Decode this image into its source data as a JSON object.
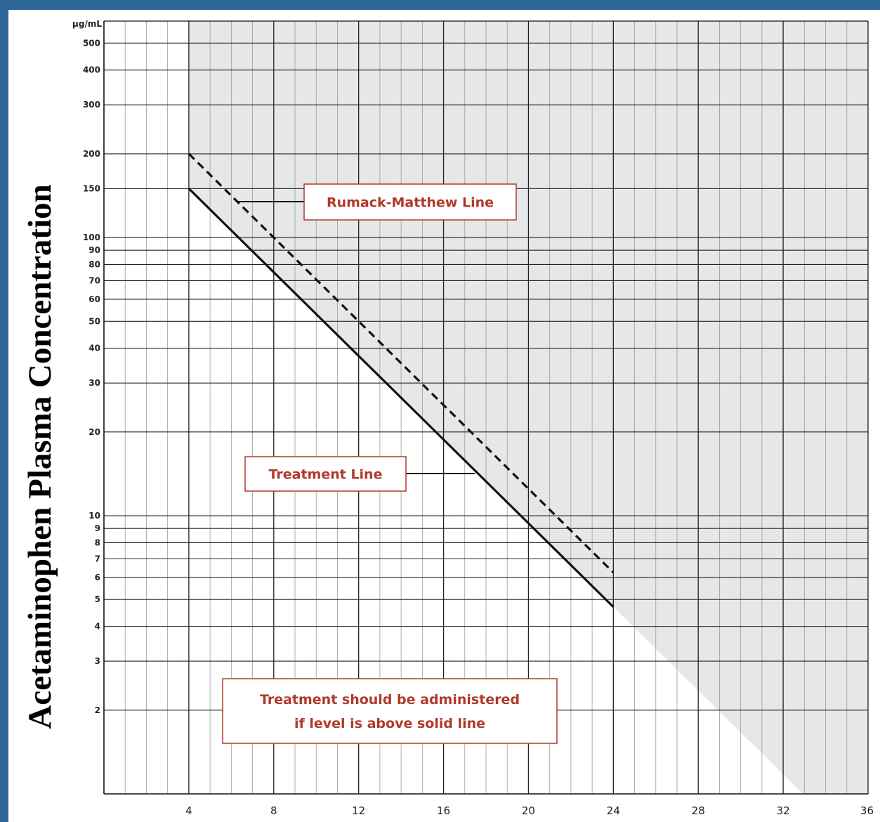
{
  "chart_data": {
    "type": "line",
    "ylabel": "Acetaminophen Plasma Concentration",
    "yunit": "µg/mL",
    "yscale": "log",
    "xlim": [
      0,
      36
    ],
    "ylim": [
      1,
      600
    ],
    "xticks": [
      "4",
      "8",
      "12",
      "16",
      "20",
      "24",
      "28",
      "32",
      "36"
    ],
    "yticks": [
      "2",
      "3",
      "4",
      "5",
      "6",
      "7",
      "8",
      "9",
      "10",
      "20",
      "30",
      "40",
      "50",
      "60",
      "70",
      "80",
      "90",
      "100",
      "150",
      "200",
      "300",
      "400",
      "500"
    ],
    "series": [
      {
        "name": "Rumack-Matthew Line",
        "style": "dashed",
        "x": [
          4,
          24
        ],
        "y": [
          200,
          6.25
        ]
      },
      {
        "name": "Treatment Line",
        "style": "solid",
        "x": [
          4,
          24
        ],
        "y": [
          150,
          4.7
        ]
      }
    ],
    "shaded_region": {
      "description_color": "#e6e7e9"
    },
    "annotations": [
      {
        "text": "Rumack-Matthew Line",
        "target": "Rumack-Matthew Line"
      },
      {
        "text": "Treatment Line",
        "target": "Treatment Line"
      },
      {
        "text_lines": [
          "Treatment should be administered",
          "if level is above solid line"
        ]
      }
    ],
    "grid": true,
    "colors": {
      "shade": "#e6e7e9",
      "annotation": "#b0392b",
      "background": "#2f6699"
    }
  }
}
